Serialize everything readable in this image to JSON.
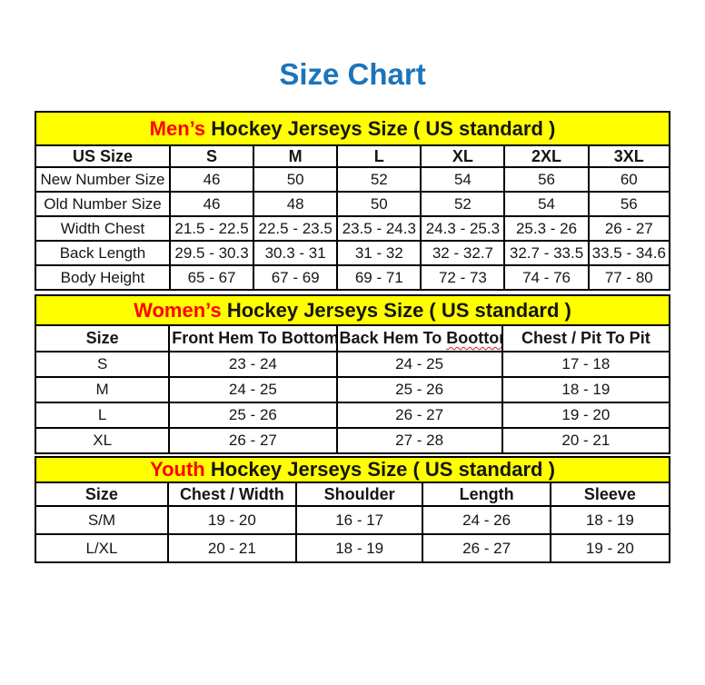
{
  "page": {
    "title": "Size Chart"
  },
  "colors": {
    "title_blue": "#1B75BC",
    "banner_yellow": "#FFFF00",
    "accent_red": "#FF0000",
    "border_black": "#000000",
    "background": "#FFFFFF"
  },
  "tables": [
    {
      "id": "mens",
      "banner": {
        "accent": "Men’s",
        "rest": " Hockey Jerseys Size ( US standard )"
      },
      "columns": [
        {
          "label": "US Size"
        },
        {
          "label": "S"
        },
        {
          "label": "M"
        },
        {
          "label": "L"
        },
        {
          "label": "XL"
        },
        {
          "label": "2XL"
        },
        {
          "label": "3XL"
        }
      ],
      "rows": [
        {
          "label": "New Number Size",
          "values": [
            "46",
            "50",
            "52",
            "54",
            "56",
            "60"
          ]
        },
        {
          "label": "Old Number Size",
          "values": [
            "46",
            "48",
            "50",
            "52",
            "54",
            "56"
          ]
        },
        {
          "label": "Width Chest",
          "values": [
            "21.5 - 22.5",
            "22.5 - 23.5",
            "23.5 - 24.3",
            "24.3 - 25.3",
            "25.3 - 26",
            "26 - 27"
          ]
        },
        {
          "label": "Back Length",
          "values": [
            "29.5 - 30.3",
            "30.3 - 31",
            "31 - 32",
            "32 - 32.7",
            "32.7 - 33.5",
            "33.5 - 34.6"
          ]
        },
        {
          "label": "Body Height",
          "values": [
            "65 - 67",
            "67 - 69",
            "69 - 71",
            "72 - 73",
            "74 - 76",
            "77 - 80"
          ]
        }
      ]
    },
    {
      "id": "womens",
      "banner": {
        "accent": "Women’s",
        "rest": " Hockey Jerseys Size ( US standard )"
      },
      "columns": [
        {
          "label": "Size"
        },
        {
          "label": "Front Hem To Bottom"
        },
        {
          "label": "Back Hem To Boottom",
          "squiggle": "Boottom"
        },
        {
          "label": "Chest / Pit To Pit"
        }
      ],
      "rows": [
        {
          "label": "S",
          "values": [
            "23 - 24",
            "24 - 25",
            "17 - 18"
          ]
        },
        {
          "label": "M",
          "values": [
            "24 - 25",
            "25 - 26",
            "18 - 19"
          ]
        },
        {
          "label": "L",
          "values": [
            "25 - 26",
            "26 - 27",
            "19 - 20"
          ]
        },
        {
          "label": "XL",
          "values": [
            "26 - 27",
            "27 - 28",
            "20 - 21"
          ]
        }
      ]
    },
    {
      "id": "youth",
      "banner": {
        "accent": "Youth",
        "rest": " Hockey Jerseys Size ( US standard )"
      },
      "columns": [
        {
          "label": "Size"
        },
        {
          "label": "Chest / Width"
        },
        {
          "label": "Shoulder"
        },
        {
          "label": "Length"
        },
        {
          "label": "Sleeve"
        }
      ],
      "rows": [
        {
          "label": "S/M",
          "values": [
            "19 - 20",
            "16 - 17",
            "24 - 26",
            "18 - 19"
          ]
        },
        {
          "label": "L/XL",
          "values": [
            "20 - 21",
            "18 - 19",
            "26 - 27",
            "19 - 20"
          ]
        }
      ]
    }
  ]
}
